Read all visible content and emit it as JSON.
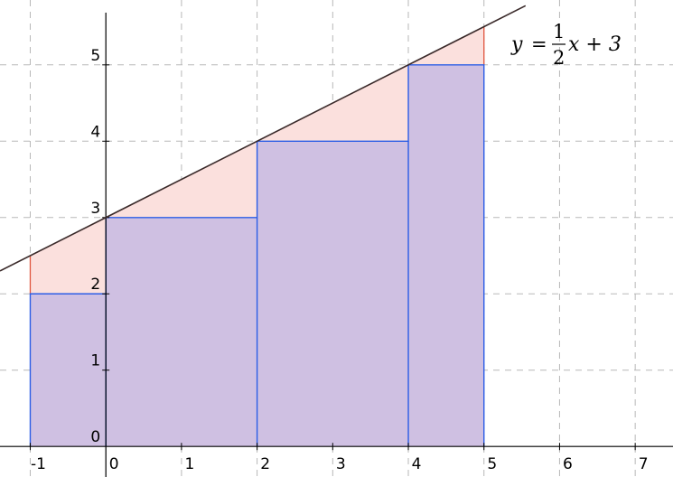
{
  "chart_data": {
    "type": "area",
    "x_ticks": [
      "-1",
      "0",
      "1",
      "2",
      "3",
      "4",
      "5",
      "6",
      "7"
    ],
    "y_ticks": [
      "0",
      "1",
      "2",
      "3",
      "4",
      "5"
    ],
    "xlim": [
      -1.4,
      7.5
    ],
    "ylim": [
      -0.4,
      5.85
    ],
    "grid": true,
    "line": {
      "slope": 0.5,
      "intercept": 3,
      "x_range": [
        -1.4,
        5.55
      ],
      "label": {
        "lhs": "y",
        "equals": "=",
        "num": "1",
        "den": "2",
        "rhs": "x + 3"
      }
    },
    "steps": [
      {
        "x0": -1,
        "x1": 0,
        "height": 2
      },
      {
        "x0": 0,
        "x1": 2,
        "height": 3
      },
      {
        "x0": 2,
        "x1": 4,
        "height": 4
      },
      {
        "x0": 4,
        "x1": 5,
        "height": 5
      }
    ],
    "colors": {
      "step_fill": "#cfc0e2",
      "step_edge": "#2b5de6",
      "gap_fill": "#fbe0dd",
      "gap_edge": "#e0553e",
      "line": "#3a2a2a",
      "grid": "#b8b8b8",
      "axis": "#000000"
    }
  }
}
